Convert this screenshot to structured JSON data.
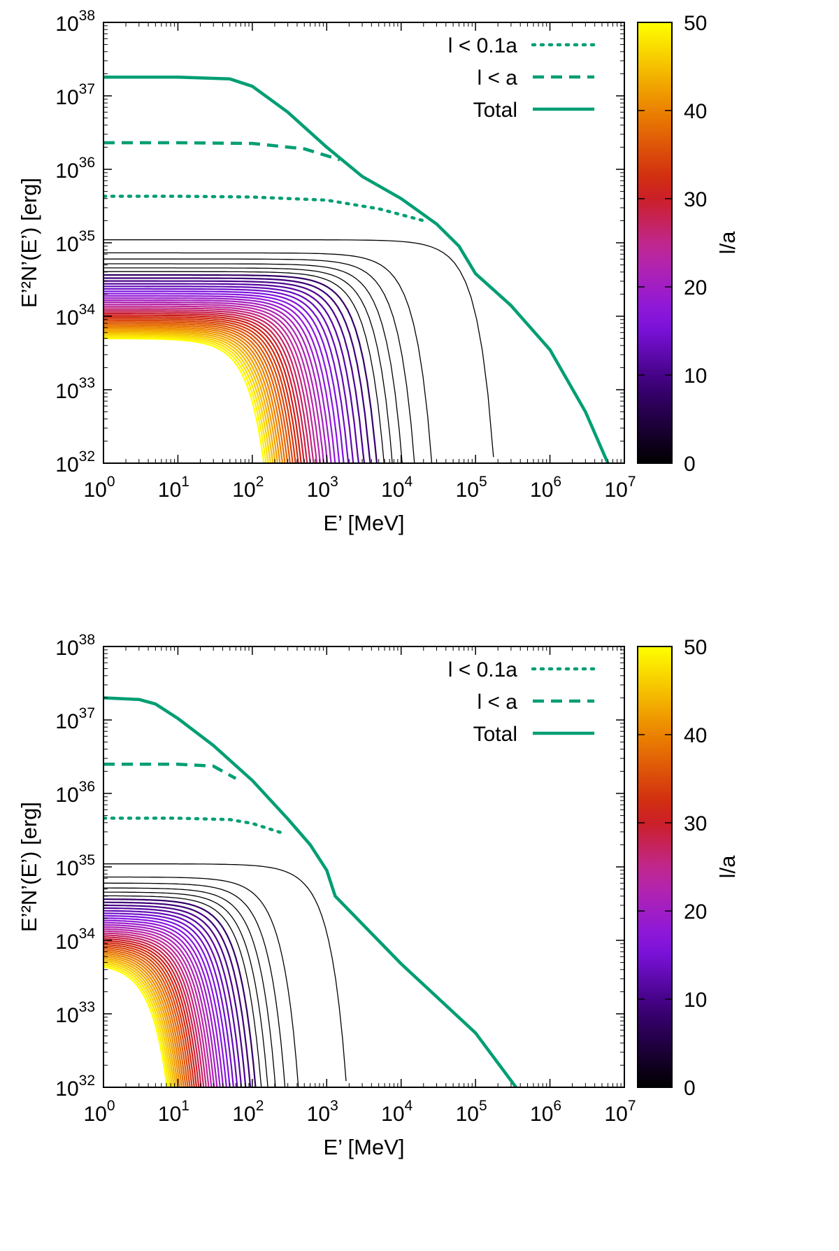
{
  "chart_data": [
    {
      "type": "line",
      "panel": "top",
      "xlabel": "E’ [MeV]",
      "ylabel": "E’²N’(E’) [erg]",
      "xscale": "log",
      "yscale": "log",
      "xlim": [
        1,
        10000000
      ],
      "ylim": [
        1e+32,
        1e+38
      ],
      "x_ticks": [
        {
          "base": "10",
          "exp": "0"
        },
        {
          "base": "10",
          "exp": "1"
        },
        {
          "base": "10",
          "exp": "2"
        },
        {
          "base": "10",
          "exp": "3"
        },
        {
          "base": "10",
          "exp": "4"
        },
        {
          "base": "10",
          "exp": "5"
        },
        {
          "base": "10",
          "exp": "6"
        },
        {
          "base": "10",
          "exp": "7"
        }
      ],
      "y_ticks": [
        {
          "base": "10",
          "exp": "32"
        },
        {
          "base": "10",
          "exp": "33"
        },
        {
          "base": "10",
          "exp": "34"
        },
        {
          "base": "10",
          "exp": "35"
        },
        {
          "base": "10",
          "exp": "36"
        },
        {
          "base": "10",
          "exp": "37"
        },
        {
          "base": "10",
          "exp": "38"
        }
      ],
      "colorbar": {
        "label": "l/a",
        "min": 0,
        "max": 50,
        "ticks": [
          "0",
          "10",
          "20",
          "30",
          "40",
          "50"
        ]
      },
      "legend_position": "top-right",
      "series": [
        {
          "name": "l < 0.1a",
          "style": "dotted",
          "color": "#009E73",
          "points": [
            [
              1,
              4.3e+35
            ],
            [
              10,
              4.3e+35
            ],
            [
              100,
              4.2e+35
            ],
            [
              1000,
              3.8e+35
            ],
            [
              5000,
              2.9e+35
            ],
            [
              20000,
              2e+35
            ]
          ]
        },
        {
          "name": "l < a",
          "style": "dashed",
          "color": "#009E73",
          "points": [
            [
              1,
              2.3e+36
            ],
            [
              10,
              2.3e+36
            ],
            [
              100,
              2.25e+36
            ],
            [
              500,
              1.9e+36
            ],
            [
              1500,
              1.35e+36
            ]
          ]
        },
        {
          "name": "Total",
          "style": "solid",
          "color": "#009E73",
          "points": [
            [
              1,
              1.8e+37
            ],
            [
              10,
              1.8e+37
            ],
            [
              50,
              1.7e+37
            ],
            [
              100,
              1.35e+37
            ],
            [
              300,
              6e+36
            ],
            [
              1000,
              2e+36
            ],
            [
              3000,
              8e+35
            ],
            [
              10000,
              4e+35
            ],
            [
              30000,
              1.8e+35
            ],
            [
              60000,
              9e+34
            ],
            [
              100000,
              3.8e+34
            ],
            [
              300000,
              1.4e+34
            ],
            [
              1000000,
              3.5e+33
            ],
            [
              3000000,
              5e+32
            ],
            [
              6000000,
              1e+32
            ]
          ]
        }
      ],
      "family": {
        "description": "individual l/a spectra",
        "count": 40,
        "plateau_range": [
          5e+33,
          1.1e+35
        ],
        "cutoff_range_MeV": [
          120,
          110000
        ]
      }
    },
    {
      "type": "line",
      "panel": "bottom",
      "xlabel": "E’ [MeV]",
      "ylabel": "E’²N’(E’) [erg]",
      "xscale": "log",
      "yscale": "log",
      "xlim": [
        1,
        10000000
      ],
      "ylim": [
        1e+32,
        1e+38
      ],
      "x_ticks": [
        {
          "base": "10",
          "exp": "0"
        },
        {
          "base": "10",
          "exp": "1"
        },
        {
          "base": "10",
          "exp": "2"
        },
        {
          "base": "10",
          "exp": "3"
        },
        {
          "base": "10",
          "exp": "4"
        },
        {
          "base": "10",
          "exp": "5"
        },
        {
          "base": "10",
          "exp": "6"
        },
        {
          "base": "10",
          "exp": "7"
        }
      ],
      "y_ticks": [
        {
          "base": "10",
          "exp": "32"
        },
        {
          "base": "10",
          "exp": "33"
        },
        {
          "base": "10",
          "exp": "34"
        },
        {
          "base": "10",
          "exp": "35"
        },
        {
          "base": "10",
          "exp": "36"
        },
        {
          "base": "10",
          "exp": "37"
        },
        {
          "base": "10",
          "exp": "38"
        }
      ],
      "colorbar": {
        "label": "l/a",
        "min": 0,
        "max": 50,
        "ticks": [
          "0",
          "10",
          "20",
          "30",
          "40",
          "50"
        ]
      },
      "legend_position": "top-right",
      "series": [
        {
          "name": "l < 0.1a",
          "style": "dotted",
          "color": "#009E73",
          "points": [
            [
              1,
              4.6e+35
            ],
            [
              10,
              4.6e+35
            ],
            [
              50,
              4.4e+35
            ],
            [
              100,
              3.9e+35
            ],
            [
              250,
              2.9e+35
            ]
          ]
        },
        {
          "name": "l < a",
          "style": "dashed",
          "color": "#009E73",
          "points": [
            [
              1,
              2.5e+36
            ],
            [
              10,
              2.5e+36
            ],
            [
              30,
              2.35e+36
            ],
            [
              60,
              1.6e+36
            ]
          ]
        },
        {
          "name": "Total",
          "style": "solid",
          "color": "#009E73",
          "points": [
            [
              1,
              2e+37
            ],
            [
              3,
              1.9e+37
            ],
            [
              5,
              1.65e+37
            ],
            [
              10,
              1.05e+37
            ],
            [
              30,
              4.5e+36
            ],
            [
              100,
              1.5e+36
            ],
            [
              300,
              4.5e+35
            ],
            [
              600,
              2e+35
            ],
            [
              1000,
              9e+34
            ],
            [
              1300,
              4e+34
            ],
            [
              10000,
              4.8e+33
            ],
            [
              100000,
              5.5e+32
            ],
            [
              350000,
              1e+32
            ]
          ]
        }
      ],
      "family": {
        "description": "individual l/a spectra",
        "count": 40,
        "plateau_range": [
          5e+33,
          1.1e+35
        ],
        "cutoff_range_MeV": [
          6,
          1150
        ]
      }
    }
  ]
}
